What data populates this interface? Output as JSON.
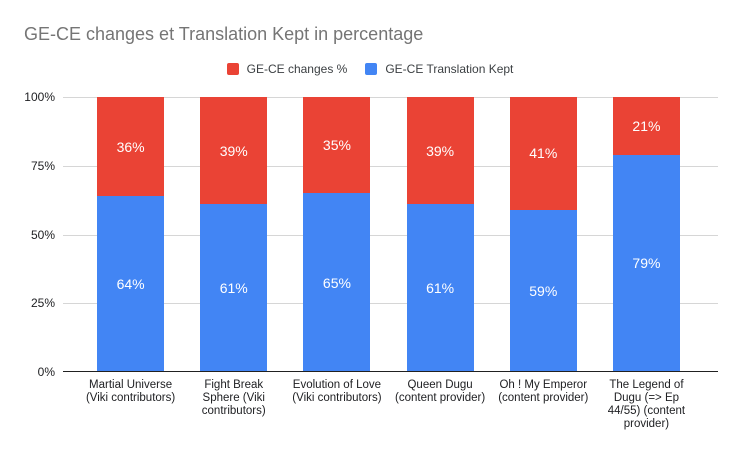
{
  "chart_data": {
    "type": "bar",
    "stacked": true,
    "title": "GE-CE changes et Translation Kept in percentage",
    "title_color": "#757575",
    "categories": [
      "Martial Universe (Viki contributors)",
      "Fight Break Sphere (Viki contributors)",
      "Evolution of Love (Viki contributors)",
      "Queen Dugu (content provider)",
      "Oh ! My Emperor (content provider)",
      "The Legend of Dugu (=> Ep 44/55) (content provider)"
    ],
    "series": [
      {
        "name": "GE-CE changes %",
        "color": "#EA4335",
        "values": [
          36,
          39,
          35,
          39,
          41,
          21
        ]
      },
      {
        "name": "GE-CE Translation Kept",
        "color": "#4285F4",
        "values": [
          64,
          61,
          65,
          61,
          59,
          79
        ]
      }
    ],
    "value_suffix": "%",
    "data_label_color": "#ffffff",
    "y_axis": {
      "ticks": [
        "0%",
        "25%",
        "50%",
        "75%",
        "100%"
      ],
      "range": [
        0,
        100
      ]
    },
    "layout": {
      "legend_position": "top",
      "grid": true,
      "gridline_color": "#d6d6d6",
      "baseline_color": "#212121",
      "background": "#ffffff"
    }
  }
}
